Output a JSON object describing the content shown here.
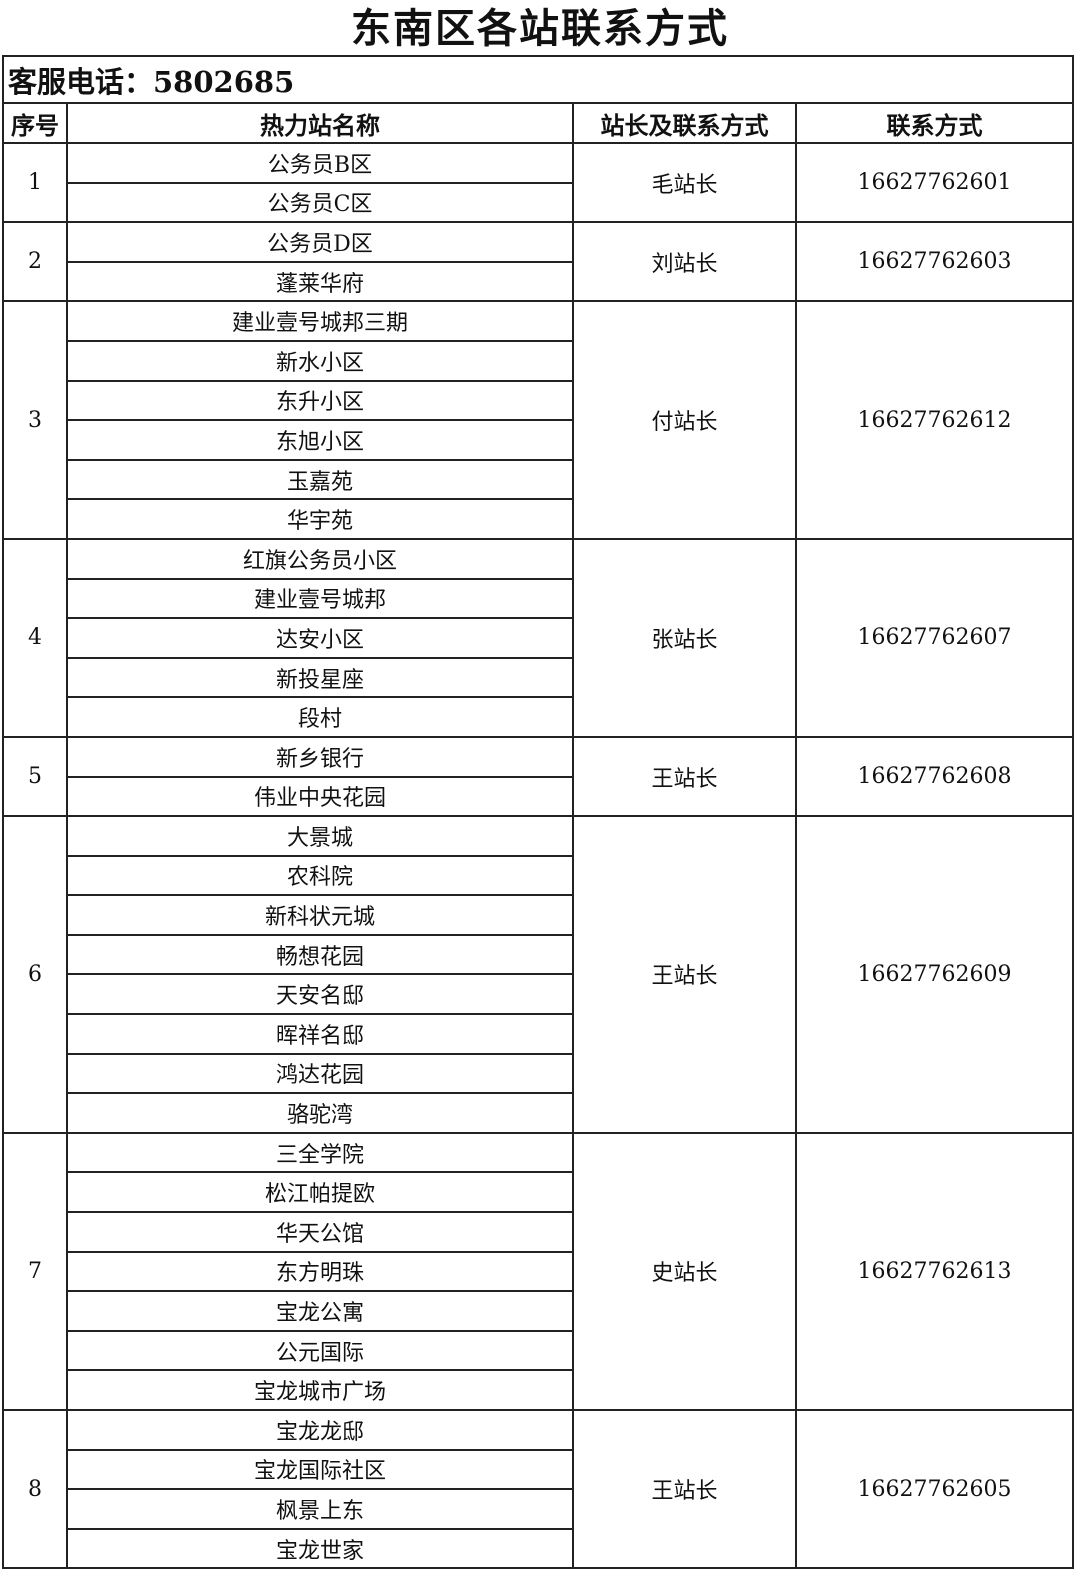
{
  "title": "东南区各站联系方式",
  "service": "客服电话：5802685",
  "header": [
    "序号",
    "热力站名称",
    "站长及联系方式",
    "联系方式"
  ],
  "groups": [
    {
      "no": "1",
      "stations": [
        "公务员B区",
        "公务员C区"
      ],
      "manager": "毛站长",
      "phone": "16627762601"
    },
    {
      "no": "2",
      "stations": [
        "公务员D区",
        "蓬莱华府"
      ],
      "manager": "刘站长",
      "phone": "16627762603"
    },
    {
      "no": "3",
      "stations": [
        "建业壹号城邦三期",
        "新水小区",
        "东升小区",
        "东旭小区",
        "玉嘉苑",
        "华宇苑"
      ],
      "manager": "付站长",
      "phone": "16627762612"
    },
    {
      "no": "4",
      "stations": [
        "红旗公务员小区",
        "建业壹号城邦",
        "达安小区",
        "新投星座",
        "段村"
      ],
      "manager": "张站长",
      "phone": "16627762607"
    },
    {
      "no": "5",
      "stations": [
        "新乡银行",
        "伟业中央花园"
      ],
      "manager": "王站长",
      "phone": "16627762608"
    },
    {
      "no": "6",
      "stations": [
        "大景城",
        "农科院",
        "新科状元城",
        "畅想花园",
        "天安名邸",
        "晖祥名邸",
        "鸿达花园",
        "骆驼湾"
      ],
      "manager": "王站长",
      "phone": "16627762609"
    },
    {
      "no": "7",
      "stations": [
        "三全学院",
        "松江帕提欧",
        "华天公馆",
        "东方明珠",
        "宝龙公寓",
        "公元国际",
        "宝龙城市广场"
      ],
      "manager": "史站长",
      "phone": "16627762613"
    },
    {
      "no": "8",
      "stations": [
        "宝龙龙邸",
        "宝龙国际社区",
        "枫景上东",
        "宝龙世家"
      ],
      "manager": "王站长",
      "phone": "16627762605"
    }
  ]
}
